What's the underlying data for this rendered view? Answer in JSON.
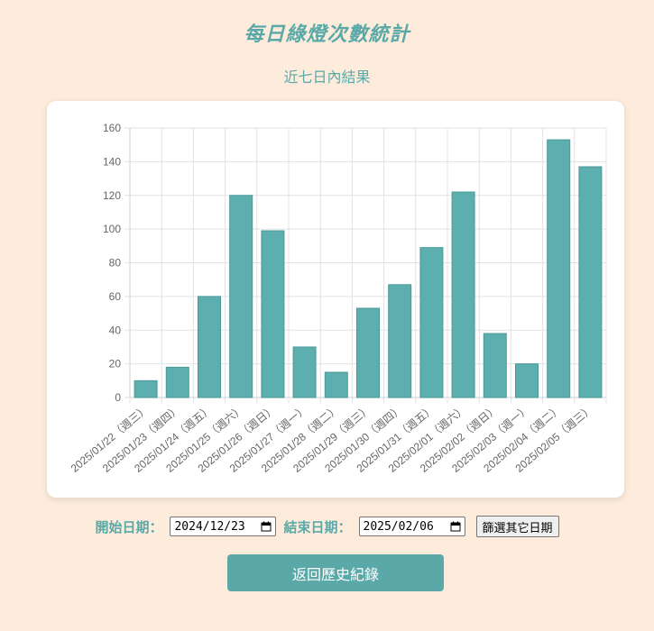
{
  "header": {
    "title": "每日綠燈次數統計",
    "subtitle": "近七日內結果"
  },
  "colors": {
    "accent": "#5aa9a8",
    "background": "#fdecdc",
    "bar_fill": "#5daeae",
    "bar_stroke": "#4a9a9a"
  },
  "chart_data": {
    "type": "bar",
    "title": "",
    "xlabel": "",
    "ylabel": "",
    "ylim": [
      0,
      160
    ],
    "yticks": [
      0,
      20,
      40,
      60,
      80,
      100,
      120,
      140,
      160
    ],
    "grid": true,
    "categories": [
      "2025/01/22（週三）",
      "2025/01/23（週四）",
      "2025/01/24（週五）",
      "2025/01/25（週六）",
      "2025/01/26（週日）",
      "2025/01/27（週一）",
      "2025/01/28（週二）",
      "2025/01/29（週三）",
      "2025/01/30（週四）",
      "2025/01/31（週五）",
      "2025/02/01（週六）",
      "2025/02/02（週日）",
      "2025/02/03（週一）",
      "2025/02/04（週二）",
      "2025/02/05（週三）"
    ],
    "series": [
      {
        "values": [
          10,
          18,
          60,
          120,
          99,
          30,
          15,
          53,
          67,
          89,
          122,
          38,
          20,
          153,
          137
        ]
      }
    ]
  },
  "filters": {
    "start_label": "開始日期：",
    "start_value": "2024/12/23",
    "end_label": "結束日期：",
    "end_value": "2025/02/06",
    "other_button": "篩選其它日期"
  },
  "actions": {
    "back_button": "返回歷史紀錄"
  }
}
